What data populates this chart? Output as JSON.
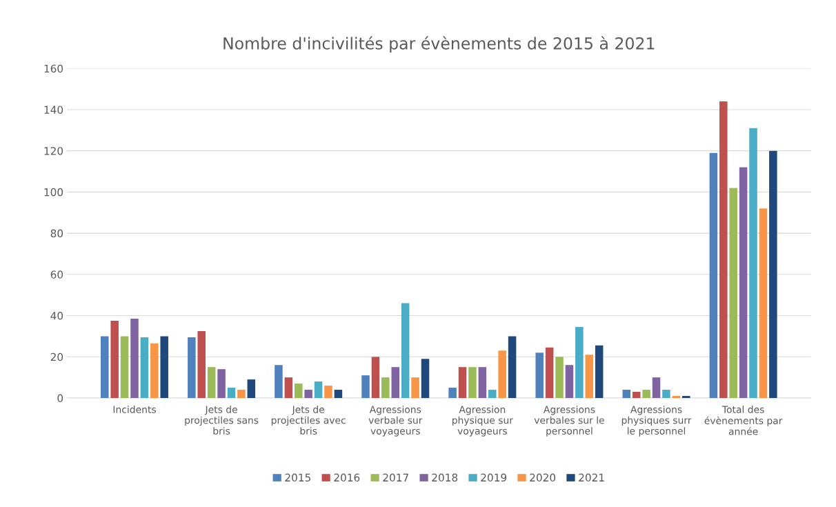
{
  "chart_data": {
    "type": "bar",
    "title": "Nombre d'incivilités par évènements de 2015 à 2021",
    "categories": [
      "Incidents",
      "Jets de projectiles sans bris",
      "Jets de projectiles avec bris",
      "Agressions verbale sur voyageurs",
      "Agression physique sur voyageurs",
      "Agressions verbales sur le personnel",
      "Agressions physiques surr le personnel",
      "Total des évènements par année"
    ],
    "series": [
      {
        "name": "2015",
        "color": "#4f81bd",
        "values": [
          30,
          29.5,
          16,
          11,
          5,
          22,
          4,
          119
        ]
      },
      {
        "name": "2016",
        "color": "#c0504d",
        "values": [
          37.5,
          32.5,
          10,
          20,
          15,
          24.5,
          3,
          144
        ]
      },
      {
        "name": "2017",
        "color": "#9bbb59",
        "values": [
          30,
          15,
          7,
          10,
          15,
          20,
          4,
          102
        ]
      },
      {
        "name": "2018",
        "color": "#8064a2",
        "values": [
          38.5,
          14,
          4,
          15,
          15,
          16,
          10,
          112
        ]
      },
      {
        "name": "2019",
        "color": "#4bacc6",
        "values": [
          29.5,
          5,
          8,
          46,
          4,
          34.5,
          4,
          131
        ]
      },
      {
        "name": "2020",
        "color": "#f79646",
        "values": [
          26.5,
          4,
          6,
          10,
          23,
          21,
          1,
          92
        ]
      },
      {
        "name": "2021",
        "color": "#1f497d",
        "values": [
          30,
          9,
          4,
          19,
          30,
          25.5,
          1,
          120
        ]
      }
    ],
    "ylim": [
      0,
      160
    ],
    "yticks": [
      0,
      20,
      40,
      60,
      80,
      100,
      120,
      140,
      160
    ],
    "grid": "y",
    "legend": "bottom"
  }
}
